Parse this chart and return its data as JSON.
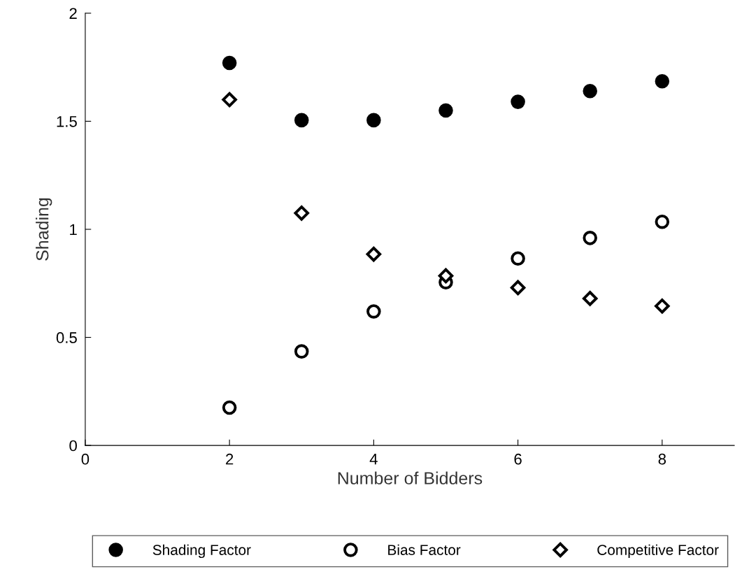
{
  "chart_data": {
    "type": "scatter",
    "xlabel": "Number of Bidders",
    "ylabel": "Shading",
    "x": [
      2,
      3,
      4,
      5,
      6,
      7,
      8
    ],
    "series": [
      {
        "name": "Shading Factor",
        "color": "#000000",
        "marker": "circle",
        "values": [
          1.77,
          1.505,
          1.505,
          1.55,
          1.59,
          1.64,
          1.685
        ]
      },
      {
        "name": "Bias Factor",
        "color": "#000000",
        "marker": "circle",
        "values": [
          0.175,
          0.435,
          0.62,
          0.755,
          0.865,
          0.96,
          1.035
        ]
      },
      {
        "name": "Competitive Factor",
        "color": "#000000",
        "marker": "diamond",
        "values": [
          1.6,
          1.075,
          0.885,
          0.785,
          0.73,
          0.68,
          0.645
        ]
      }
    ],
    "xlim": [
      0,
      9
    ],
    "ylim": [
      0,
      2
    ],
    "xticks": [
      0,
      2,
      4,
      6,
      8
    ],
    "yticks": [
      0,
      0.5,
      1,
      1.5,
      2
    ],
    "grid": false,
    "legend": "bottom"
  }
}
